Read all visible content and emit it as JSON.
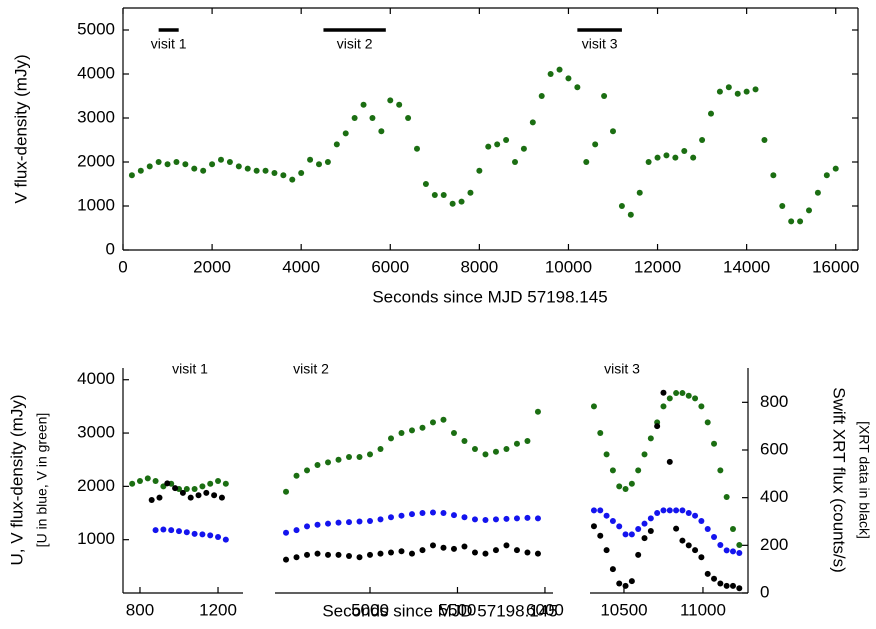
{
  "chart_data": [
    {
      "type": "scatter",
      "xlabel": "Seconds since MJD 57198.145",
      "ylabel": "V flux-density (mJy)",
      "color": "#1b6e12",
      "xlim": [
        0,
        16500
      ],
      "ylim": [
        0,
        5500
      ],
      "xticks": [
        0,
        2000,
        4000,
        6000,
        8000,
        10000,
        12000,
        14000,
        16000
      ],
      "yticks": [
        0,
        1000,
        2000,
        3000,
        4000,
        5000
      ],
      "annotations": [
        {
          "text": "visit 1",
          "x": [
            800,
            1250
          ],
          "y": 5000
        },
        {
          "text": "visit 2",
          "x": [
            4500,
            5900
          ],
          "y": 5000
        },
        {
          "text": "visit 3",
          "x": [
            10200,
            11200
          ],
          "y": 5000
        }
      ],
      "x": [
        200,
        400,
        600,
        800,
        1000,
        1200,
        1400,
        1600,
        1800,
        2000,
        2200,
        2400,
        2600,
        2800,
        3000,
        3200,
        3400,
        3600,
        3800,
        4000,
        4200,
        4400,
        4600,
        4800,
        5000,
        5200,
        5400,
        5600,
        5800,
        6000,
        6200,
        6400,
        6600,
        6800,
        7000,
        7200,
        7400,
        7600,
        7800,
        8000,
        8200,
        8400,
        8600,
        8800,
        9000,
        9200,
        9400,
        9600,
        9800,
        10000,
        10200,
        10400,
        10600,
        10800,
        11000,
        11200,
        11400,
        11600,
        11800,
        12000,
        12200,
        12400,
        12600,
        12800,
        13000,
        13200,
        13400,
        13600,
        13800,
        14000,
        14200,
        14400,
        14600,
        14800,
        15000,
        15200,
        15400,
        15600,
        15800,
        16000
      ],
      "values": [
        1700,
        1800,
        1900,
        2000,
        1950,
        2000,
        1950,
        1850,
        1800,
        1950,
        2050,
        2000,
        1900,
        1850,
        1800,
        1800,
        1750,
        1700,
        1600,
        1750,
        2050,
        1950,
        2000,
        2400,
        2650,
        3000,
        3300,
        3000,
        2700,
        3400,
        3300,
        3000,
        2300,
        1500,
        1250,
        1250,
        1050,
        1100,
        1300,
        1800,
        2350,
        2400,
        2500,
        2000,
        2300,
        2900,
        3500,
        4000,
        4100,
        3900,
        3700,
        2000,
        2400,
        3500,
        2700,
        1000,
        800,
        1300,
        2000,
        2100,
        2150,
        2100,
        2250,
        2100,
        2500,
        3100,
        3600,
        3700,
        3550,
        3600,
        3650,
        2500,
        1700,
        1000,
        650,
        650,
        900,
        1300,
        1700,
        1850
      ]
    },
    {
      "type": "scatter",
      "label": "visit 1",
      "ylabel": "U, V flux-density (mJy)",
      "ylabel_note": "[U in blue, V in green]",
      "xlim": [
        713,
        1328
      ],
      "ylim": [
        0,
        4220
      ],
      "y2lim": [
        0,
        944
      ],
      "xticks": [
        800,
        1200
      ],
      "yticks": [
        1000,
        2000,
        3000,
        4000
      ],
      "series": [
        {
          "color": "#1b6e12",
          "x": [
            760,
            800,
            840,
            880,
            920,
            960,
            1000,
            1040,
            1080,
            1120,
            1160,
            1200,
            1240
          ],
          "values": [
            2050,
            2100,
            2150,
            2100,
            2000,
            2050,
            1950,
            1950,
            1950,
            2000,
            2050,
            2100,
            2050
          ]
        },
        {
          "color": "#1414ee",
          "x": [
            880,
            920,
            960,
            1000,
            1040,
            1080,
            1120,
            1160,
            1200,
            1240
          ],
          "values": [
            1180,
            1190,
            1180,
            1160,
            1140,
            1110,
            1100,
            1080,
            1050,
            1000
          ]
        },
        {
          "color": "#000000",
          "axis": "y2",
          "x": [
            860,
            900,
            940,
            980,
            1020,
            1060,
            1100,
            1140,
            1180,
            1220
          ],
          "values": [
            390,
            400,
            460,
            440,
            420,
            400,
            410,
            420,
            410,
            400
          ]
        }
      ]
    },
    {
      "type": "scatter",
      "label": "visit 2",
      "xlabel": "Seconds since MJD 57198.145",
      "xlim": [
        4457,
        6046
      ],
      "ylim": [
        0,
        4220
      ],
      "y2lim": [
        0,
        944
      ],
      "xticks": [
        5000,
        5500,
        6000
      ],
      "series": [
        {
          "color": "#1b6e12",
          "x": [
            4520,
            4580,
            4640,
            4700,
            4760,
            4820,
            4880,
            4940,
            5000,
            5060,
            5120,
            5180,
            5240,
            5300,
            5360,
            5420,
            5480,
            5540,
            5600,
            5660,
            5720,
            5780,
            5840,
            5900,
            5960
          ],
          "values": [
            1900,
            2200,
            2300,
            2400,
            2450,
            2500,
            2550,
            2550,
            2600,
            2700,
            2900,
            3000,
            3050,
            3100,
            3200,
            3250,
            3000,
            2850,
            2700,
            2600,
            2650,
            2700,
            2800,
            2850,
            3400
          ]
        },
        {
          "color": "#1414ee",
          "x": [
            4520,
            4580,
            4640,
            4700,
            4760,
            4820,
            4880,
            4940,
            5000,
            5060,
            5120,
            5180,
            5240,
            5300,
            5360,
            5420,
            5480,
            5540,
            5600,
            5660,
            5720,
            5780,
            5840,
            5900,
            5960
          ],
          "values": [
            1130,
            1180,
            1250,
            1280,
            1300,
            1320,
            1330,
            1340,
            1350,
            1380,
            1420,
            1450,
            1480,
            1500,
            1510,
            1500,
            1460,
            1420,
            1380,
            1370,
            1380,
            1390,
            1400,
            1410,
            1400
          ]
        },
        {
          "color": "#000000",
          "axis": "y2",
          "x": [
            4520,
            4580,
            4640,
            4700,
            4760,
            4820,
            4880,
            4940,
            5000,
            5060,
            5120,
            5180,
            5240,
            5300,
            5360,
            5420,
            5480,
            5540,
            5600,
            5660,
            5720,
            5780,
            5840,
            5900,
            5960
          ],
          "values": [
            140,
            150,
            160,
            165,
            160,
            160,
            155,
            150,
            160,
            165,
            170,
            175,
            165,
            180,
            200,
            190,
            185,
            195,
            170,
            165,
            180,
            200,
            180,
            170,
            165
          ]
        }
      ]
    },
    {
      "type": "scatter",
      "label": "visit 3",
      "y2label": "Swift XRT flux (counts/s)",
      "y2label_note": "[XRT data in black]",
      "xlim": [
        10285,
        11285
      ],
      "ylim": [
        0,
        4220
      ],
      "y2lim": [
        0,
        944
      ],
      "xticks": [
        10500,
        11000
      ],
      "y2ticks": [
        0,
        200,
        400,
        600,
        800
      ],
      "series": [
        {
          "color": "#1b6e12",
          "x": [
            10310,
            10350,
            10390,
            10430,
            10470,
            10510,
            10550,
            10590,
            10630,
            10670,
            10710,
            10750,
            10790,
            10830,
            10870,
            10910,
            10950,
            10990,
            11030,
            11070,
            11110,
            11150,
            11190,
            11230
          ],
          "values": [
            3500,
            3000,
            2600,
            2300,
            2000,
            1950,
            2050,
            2300,
            2600,
            2900,
            3200,
            3500,
            3650,
            3750,
            3750,
            3700,
            3650,
            3500,
            3200,
            2800,
            2300,
            1800,
            1200,
            900
          ]
        },
        {
          "color": "#1414ee",
          "x": [
            10310,
            10350,
            10390,
            10430,
            10470,
            10510,
            10550,
            10590,
            10630,
            10670,
            10710,
            10750,
            10790,
            10830,
            10870,
            10910,
            10950,
            10990,
            11030,
            11070,
            11110,
            11150,
            11190,
            11230
          ],
          "values": [
            1550,
            1550,
            1450,
            1350,
            1250,
            1100,
            1100,
            1200,
            1300,
            1400,
            1500,
            1550,
            1550,
            1550,
            1550,
            1500,
            1450,
            1350,
            1200,
            1050,
            900,
            800,
            780,
            750
          ]
        },
        {
          "color": "#000000",
          "axis": "y2",
          "x": [
            10310,
            10350,
            10390,
            10430,
            10470,
            10510,
            10550,
            10590,
            10630,
            10670,
            10710,
            10750,
            10790,
            10830,
            10870,
            10910,
            10950,
            10990,
            11030,
            11070,
            11110,
            11150,
            11190,
            11230
          ],
          "values": [
            280,
            240,
            180,
            100,
            40,
            30,
            50,
            160,
            230,
            260,
            700,
            840,
            550,
            270,
            220,
            200,
            180,
            150,
            80,
            60,
            40,
            30,
            30,
            20
          ]
        }
      ]
    }
  ]
}
